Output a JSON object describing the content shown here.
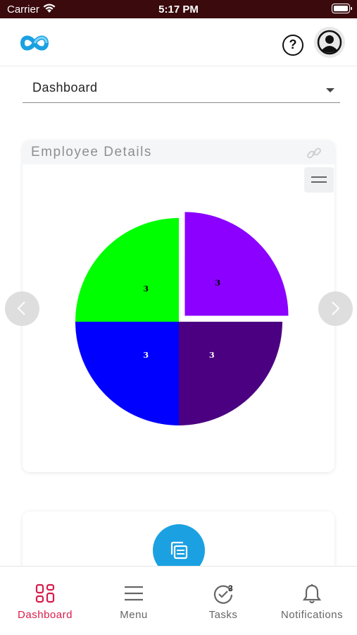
{
  "status_bar": {
    "carrier": "Carrier",
    "time": "5:17 PM"
  },
  "header": {
    "help_label": "?"
  },
  "dropdown": {
    "selected": "Dashboard"
  },
  "card": {
    "title": "Employee Details",
    "chart_data": {
      "type": "pie",
      "slices": [
        {
          "value": 3,
          "label": "3",
          "color": "#8b00ff",
          "exploded": true
        },
        {
          "value": 3,
          "label": "3",
          "color": "#4b0082",
          "exploded": false
        },
        {
          "value": 3,
          "label": "3",
          "color": "#0000ff",
          "exploded": false
        },
        {
          "value": 3,
          "label": "3",
          "color": "#00ff00",
          "exploded": false
        }
      ]
    }
  },
  "tabs": [
    {
      "label": "Dashboard",
      "active": true
    },
    {
      "label": "Menu",
      "active": false
    },
    {
      "label": "Tasks",
      "active": false,
      "badge": "3"
    },
    {
      "label": "Notifications",
      "active": false
    }
  ],
  "colors": {
    "accent": "#d81b4a",
    "status_bar": "#3a0a0d",
    "fab": "#1ba1e2"
  }
}
